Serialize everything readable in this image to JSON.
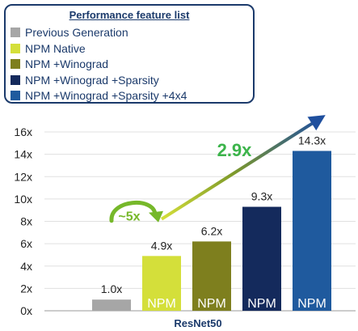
{
  "legend": {
    "title": "Performance feature list",
    "items": [
      {
        "label": "Previous Generation",
        "color": "#a6a6a6"
      },
      {
        "label": "NPM Native",
        "color": "#d4df3a"
      },
      {
        "label": "NPM +Winograd",
        "color": "#7e7f1e"
      },
      {
        "label": "NPM +Winograd +Sparsity",
        "color": "#142a5c"
      },
      {
        "label": "NPM +Winograd +Sparsity +4x4",
        "color": "#1f5a9e"
      }
    ]
  },
  "chart_data": {
    "type": "bar",
    "xlabel": "ResNet50",
    "ylabel": "",
    "ylim": [
      0,
      16
    ],
    "yticks": [
      "0x",
      "2x",
      "4x",
      "6x",
      "8x",
      "10x",
      "12x",
      "14x",
      "16x"
    ],
    "grid": true,
    "categories": [
      "Previous Generation",
      "NPM Native",
      "NPM +Winograd",
      "NPM +Winograd +Sparsity",
      "NPM +Winograd +Sparsity +4x4"
    ],
    "values": [
      1.0,
      4.9,
      6.2,
      9.3,
      14.3
    ],
    "value_labels": [
      "1.0x",
      "4.9x",
      "6.2x",
      "9.3x",
      "14.3x"
    ],
    "bar_texts": [
      "",
      "NPM",
      "NPM",
      "NPM",
      "NPM"
    ],
    "colors": [
      "#a6a6a6",
      "#d4df3a",
      "#7e7f1e",
      "#142a5c",
      "#1f5a9e"
    ],
    "annotations": [
      {
        "text": "~5x",
        "color": "#76b82a"
      },
      {
        "text": "2.9x",
        "color": "#3cb44b"
      }
    ]
  }
}
